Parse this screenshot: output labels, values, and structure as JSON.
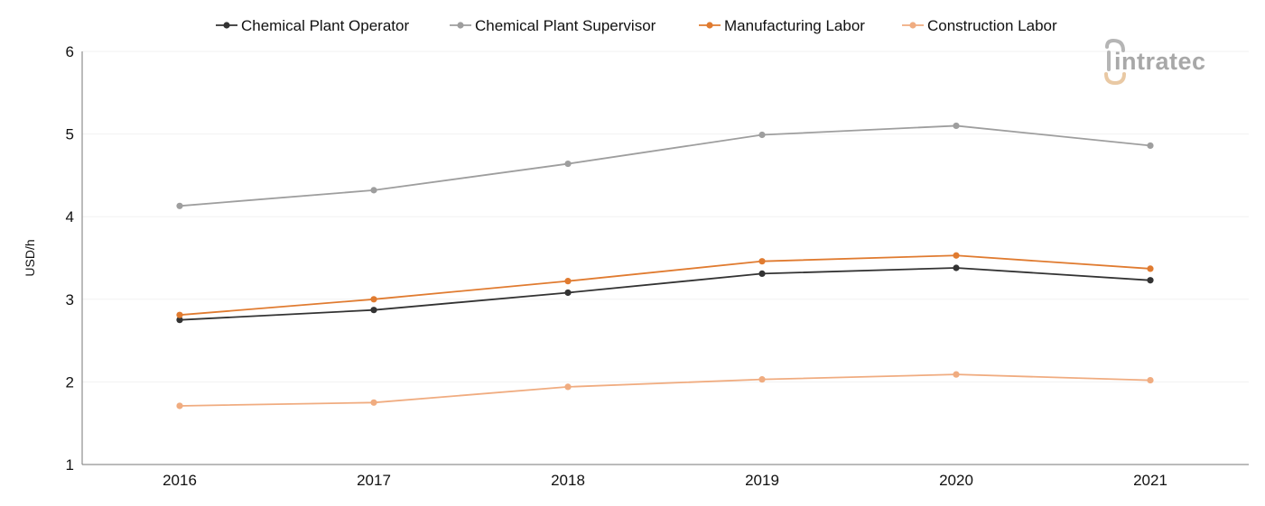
{
  "chart_data": {
    "type": "line",
    "title": "",
    "xlabel": "",
    "ylabel": "USD/h",
    "categories": [
      "2016",
      "2017",
      "2018",
      "2019",
      "2020",
      "2021"
    ],
    "ylim": [
      1,
      6
    ],
    "yticks": [
      1,
      2,
      3,
      4,
      5,
      6
    ],
    "grid": true,
    "legend_position": "top-center",
    "series": [
      {
        "name": "Chemical Plant Operator",
        "color": "#333333",
        "values": [
          2.75,
          2.87,
          3.08,
          3.31,
          3.38,
          3.23
        ]
      },
      {
        "name": "Chemical Plant Supervisor",
        "color": "#9e9e9e",
        "values": [
          4.13,
          4.32,
          4.64,
          4.99,
          5.1,
          4.86
        ]
      },
      {
        "name": "Manufacturing Labor",
        "color": "#e07b30",
        "values": [
          2.81,
          3.0,
          3.22,
          3.46,
          3.53,
          3.37
        ]
      },
      {
        "name": "Construction Labor",
        "color": "#f0ac80",
        "values": [
          1.71,
          1.75,
          1.94,
          2.03,
          2.09,
          2.02
        ]
      }
    ]
  },
  "branding": {
    "logo_text": "intratec",
    "logo_icon": "intratec-logo-icon"
  }
}
